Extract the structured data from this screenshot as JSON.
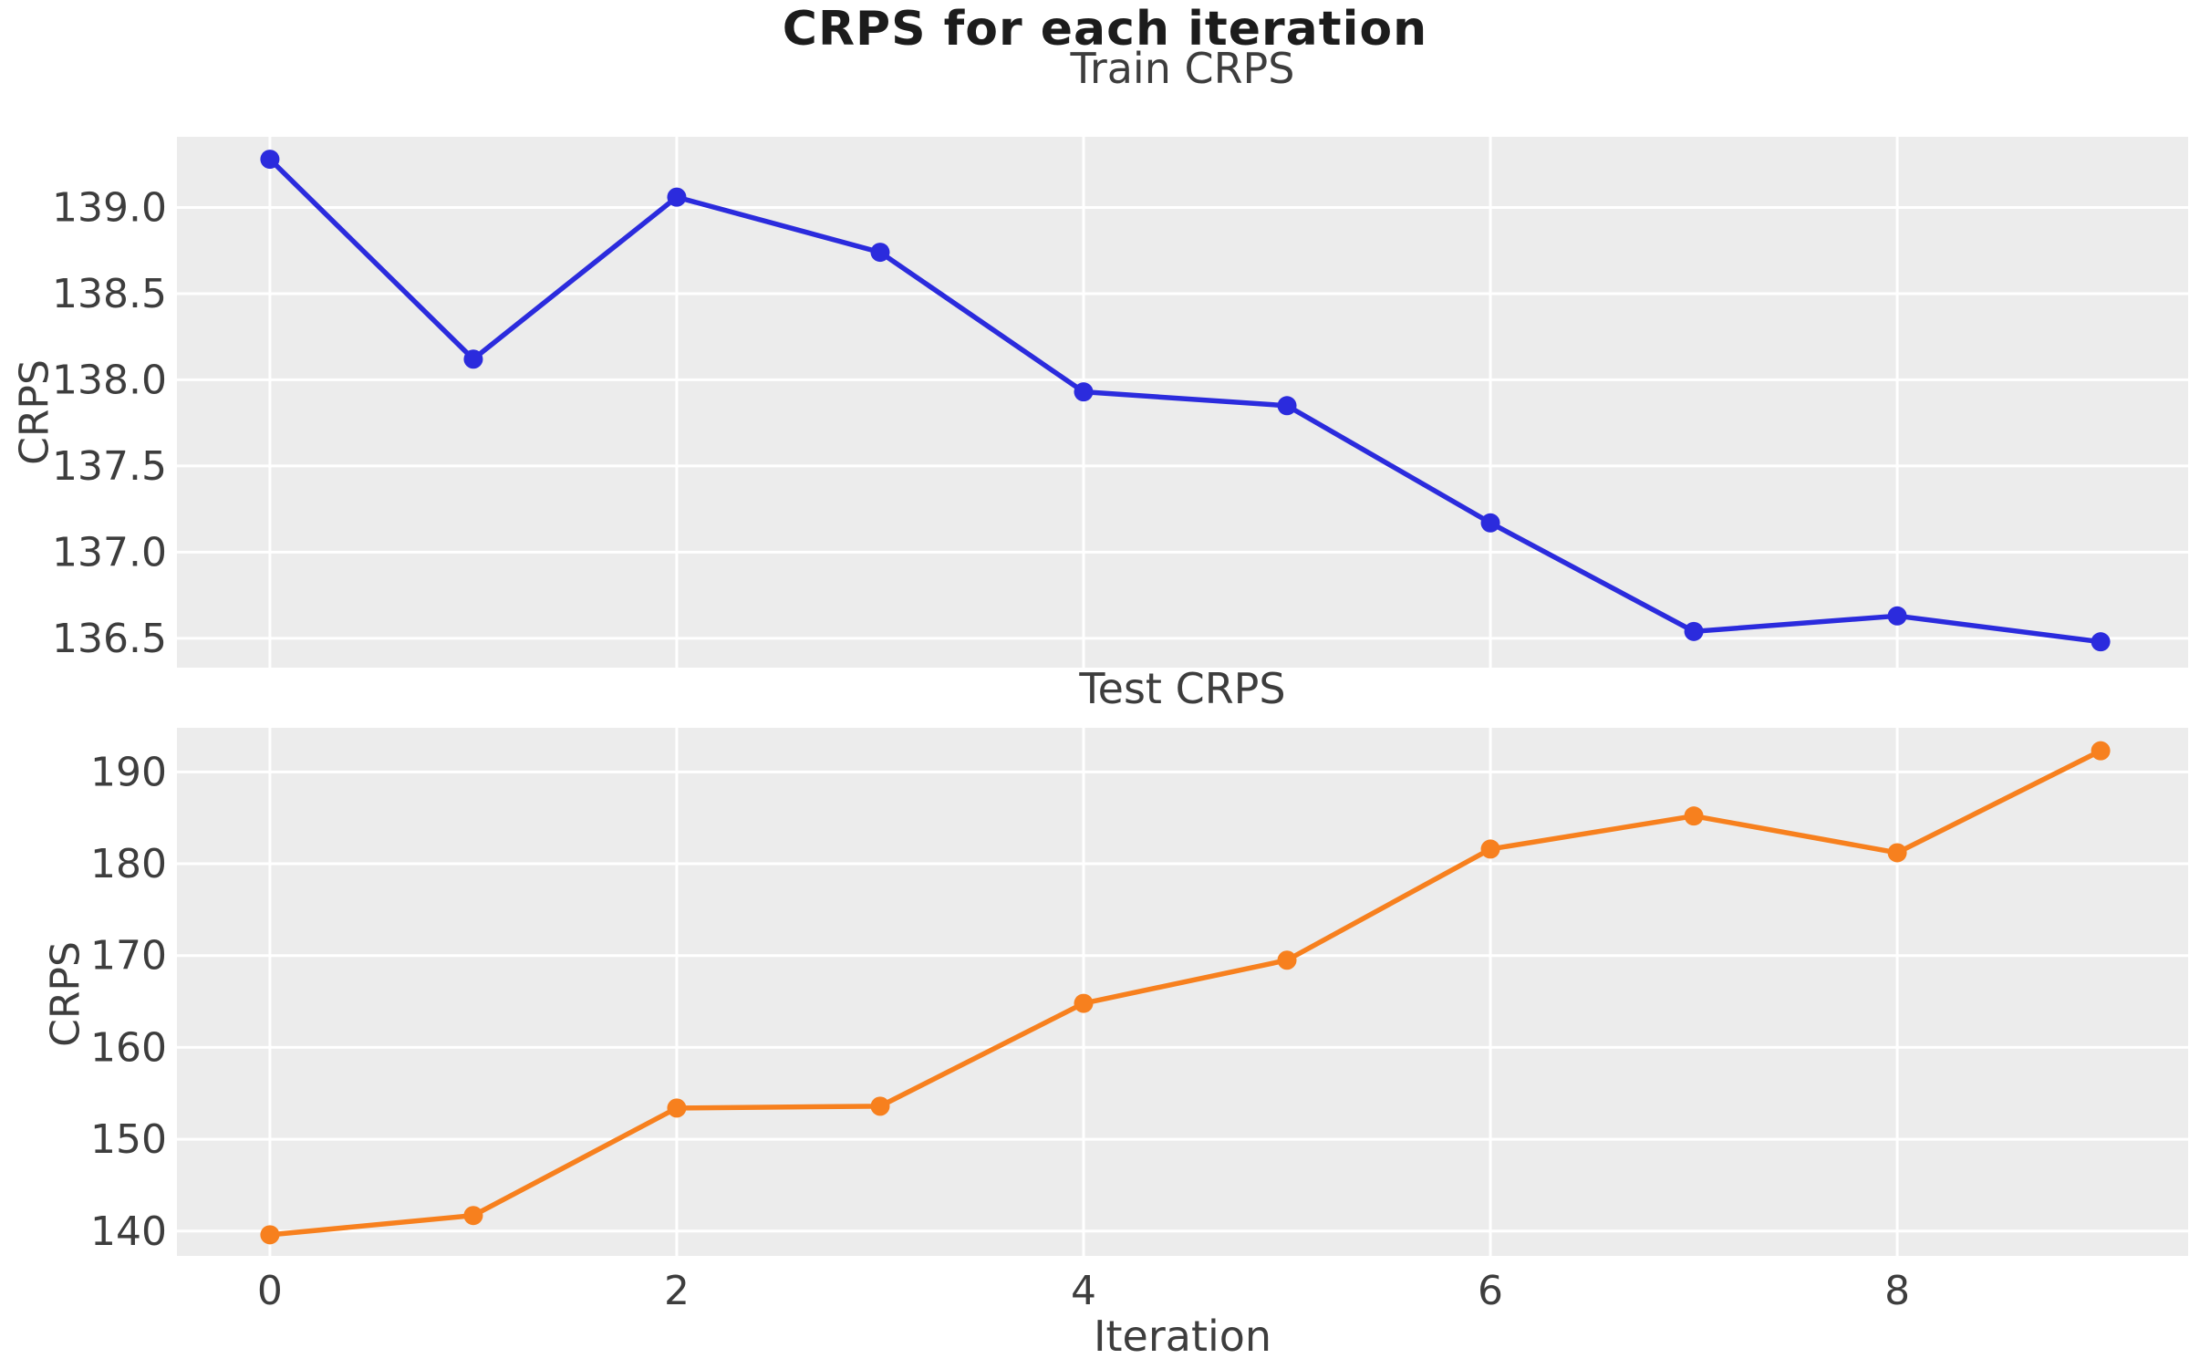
{
  "figure": {
    "suptitle": "CRPS for each iteration",
    "xlabel": "Iteration"
  },
  "style": {
    "axes_background": "#ececec",
    "grid_color": "#ffffff",
    "tick_label_color": "#3d3d3d",
    "title_color": "#1c1c1c",
    "train_line_color": "#2b2bdd",
    "test_line_color": "#f7801e"
  },
  "chart_data": [
    {
      "type": "line",
      "title": "Train CRPS",
      "ylabel": "CRPS",
      "x": [
        0,
        1,
        2,
        3,
        4,
        5,
        6,
        7,
        8,
        9
      ],
      "series": [
        {
          "name": "Train CRPS",
          "color": "#2b2bdd",
          "marker": "circle",
          "values": [
            139.28,
            138.12,
            139.06,
            138.74,
            137.93,
            137.85,
            137.17,
            136.54,
            136.63,
            136.48
          ]
        }
      ],
      "xlim": [
        -0.457,
        9.43
      ],
      "ylim": [
        136.33,
        139.41
      ],
      "yticks": {
        "values": [
          139.0,
          138.5,
          138.0,
          137.5,
          137.0,
          136.5
        ],
        "labels": [
          "139.0",
          "138.5",
          "138.0",
          "137.5",
          "137.0",
          "136.5"
        ]
      },
      "xticks": {
        "values": [
          0,
          2,
          4,
          6,
          8
        ],
        "labels": [
          "0",
          "2",
          "4",
          "6",
          "8"
        ],
        "show_labels": false
      },
      "grid": true,
      "legend": false
    },
    {
      "type": "line",
      "title": "Test CRPS",
      "ylabel": "CRPS",
      "x": [
        0,
        1,
        2,
        3,
        4,
        5,
        6,
        7,
        8,
        9
      ],
      "series": [
        {
          "name": "Test CRPS",
          "color": "#f7801e",
          "marker": "circle",
          "values": [
            139.6,
            141.7,
            153.4,
            153.6,
            164.8,
            169.5,
            181.6,
            185.2,
            181.2,
            192.3
          ]
        }
      ],
      "xlim": [
        -0.457,
        9.43
      ],
      "ylim": [
        137.3,
        194.8
      ],
      "yticks": {
        "values": [
          190,
          180,
          170,
          160,
          150,
          140
        ],
        "labels": [
          "190",
          "180",
          "170",
          "160",
          "150",
          "140"
        ]
      },
      "xticks": {
        "values": [
          0,
          2,
          4,
          6,
          8
        ],
        "labels": [
          "0",
          "2",
          "4",
          "6",
          "8"
        ],
        "show_labels": true
      },
      "grid": true,
      "legend": false
    }
  ]
}
